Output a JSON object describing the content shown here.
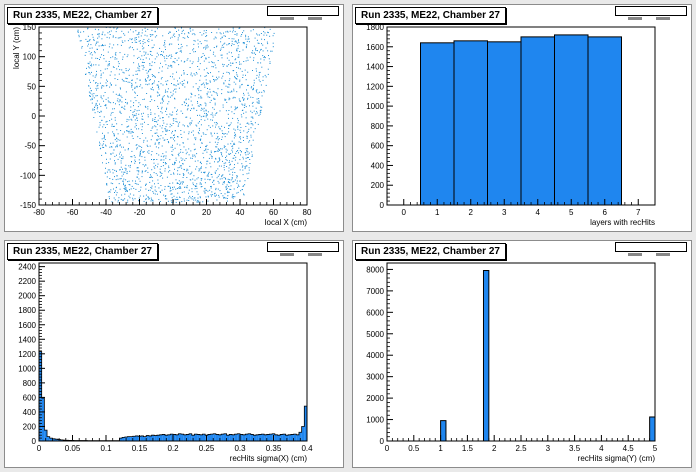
{
  "colors": {
    "fill": "#1f86ef",
    "line": "#000000",
    "marker": "#1e8fd6"
  },
  "pads": [
    {
      "title": "Run 2335, ME22, Chamber 27"
    },
    {
      "title": "Run 2335, ME22, Chamber 27"
    },
    {
      "title": "Run 2335, ME22, Chamber 27"
    },
    {
      "title": "Run 2335, ME22, Chamber 27"
    }
  ],
  "chart_data": [
    {
      "type": "scatter",
      "xlabel": "local X (cm)",
      "ylabel": "local Y (cm)",
      "xlim": [
        -80,
        80
      ],
      "ylim": [
        -150,
        150
      ],
      "xticks": [
        -80,
        -60,
        -40,
        -20,
        0,
        20,
        40,
        60,
        80
      ],
      "yticks": [
        -150,
        -100,
        -50,
        0,
        50,
        100,
        150
      ],
      "region": {
        "y_bottom": -145,
        "y_top": 150,
        "x_half_bottom": [
          -38,
          42
        ],
        "x_half_top": [
          -58,
          62
        ]
      }
    },
    {
      "type": "bar",
      "xlabel": "layers with recHits",
      "ylabel": "",
      "xlim": [
        -0.5,
        7.5
      ],
      "ylim": [
        0,
        1800
      ],
      "xticks": [
        0,
        1,
        2,
        3,
        4,
        5,
        6,
        7
      ],
      "yticks": [
        0,
        200,
        400,
        600,
        800,
        1000,
        1200,
        1400,
        1600,
        1800
      ],
      "bins": [
        {
          "lo": 0.5,
          "hi": 1.5,
          "value": 1640
        },
        {
          "lo": 1.5,
          "hi": 2.5,
          "value": 1660
        },
        {
          "lo": 2.5,
          "hi": 3.5,
          "value": 1650
        },
        {
          "lo": 3.5,
          "hi": 4.5,
          "value": 1700
        },
        {
          "lo": 4.5,
          "hi": 5.5,
          "value": 1720
        },
        {
          "lo": 5.5,
          "hi": 6.5,
          "value": 1700
        }
      ]
    },
    {
      "type": "bar",
      "xlabel": "recHits sigma(X) (cm)",
      "ylabel": "",
      "xlim": [
        0,
        0.4
      ],
      "ylim": [
        0,
        2450
      ],
      "xticks": [
        0,
        0.05,
        0.1,
        0.15,
        0.2,
        0.25,
        0.3,
        0.35,
        0.4
      ],
      "yticks": [
        0,
        200,
        400,
        600,
        800,
        1000,
        1200,
        1400,
        1600,
        1800,
        2000,
        2200,
        2400
      ],
      "bin_width": 0.004,
      "values": [
        1230,
        590,
        150,
        60,
        40,
        30,
        25,
        20,
        15,
        12,
        10,
        8,
        8,
        7,
        7,
        6,
        6,
        6,
        5,
        5,
        5,
        5,
        5,
        5,
        5,
        5,
        5,
        5,
        5,
        5,
        40,
        50,
        55,
        60,
        60,
        65,
        70,
        65,
        70,
        60,
        75,
        70,
        80,
        75,
        80,
        85,
        90,
        80,
        85,
        95,
        90,
        85,
        100,
        95,
        85,
        90,
        100,
        80,
        95,
        90,
        85,
        95,
        80,
        90,
        95,
        100,
        90,
        85,
        95,
        100,
        80,
        90,
        85,
        95,
        100,
        90,
        85,
        95,
        100,
        90,
        80,
        85,
        90,
        95,
        85,
        90,
        95,
        100,
        85,
        80,
        90,
        95,
        80,
        85,
        90,
        95,
        85,
        120,
        200,
        480
      ]
    },
    {
      "type": "bar",
      "xlabel": "recHits sigma(Y) (cm)",
      "ylabel": "",
      "xlim": [
        0,
        5
      ],
      "ylim": [
        0,
        8300
      ],
      "xticks": [
        0,
        0.5,
        1,
        1.5,
        2,
        2.5,
        3,
        3.5,
        4,
        4.5,
        5
      ],
      "yticks": [
        0,
        1000,
        2000,
        3000,
        4000,
        5000,
        6000,
        7000,
        8000
      ],
      "bins": [
        {
          "lo": 1.0,
          "hi": 1.1,
          "value": 950
        },
        {
          "lo": 1.8,
          "hi": 1.9,
          "value": 7950
        },
        {
          "lo": 4.9,
          "hi": 5.0,
          "value": 1120
        }
      ]
    }
  ]
}
